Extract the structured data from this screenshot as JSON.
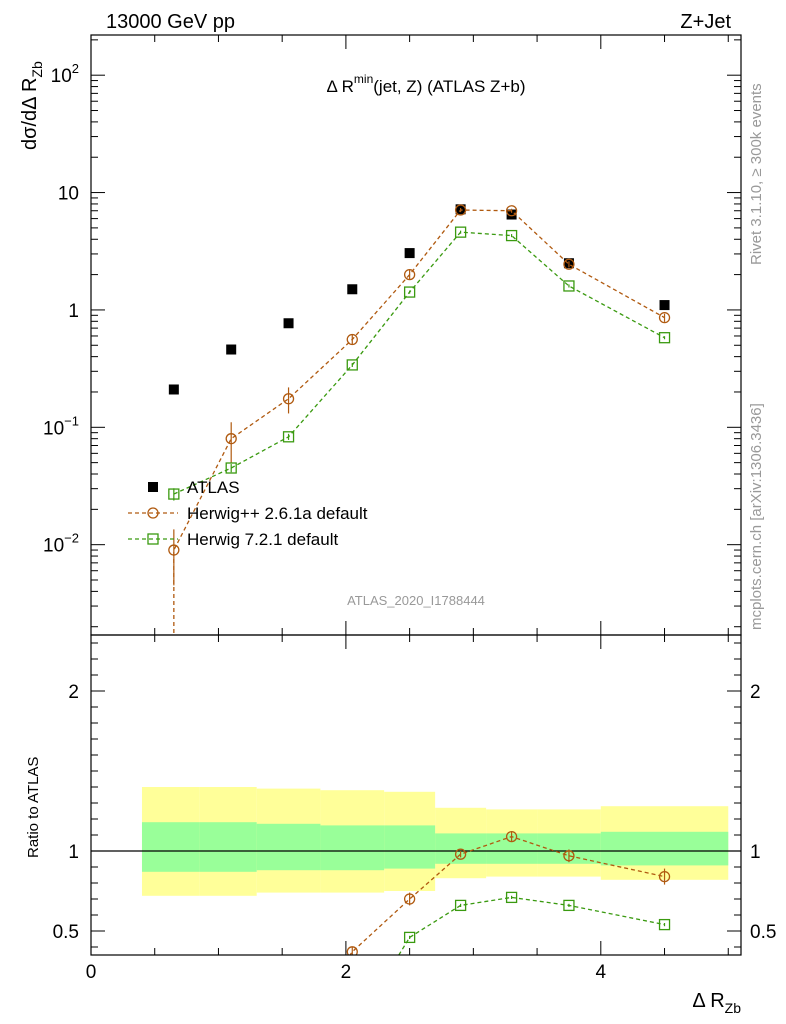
{
  "header": {
    "left": "13000 GeV pp",
    "right": "Z+Jet"
  },
  "side": {
    "rivet": "Rivet 3.1.10, ≥ 300k events",
    "mcplots": "mcplots.cern.ch [arXiv:1306.3436]"
  },
  "colors": {
    "data": "#000000",
    "herwigpp": "#b05a10",
    "herwig7": "#3a9a10",
    "band_outer": "#ffff99",
    "band_inner": "#99ff99",
    "watermark": "#999999"
  },
  "chart_data": [
    {
      "type": "scatter",
      "panel": "main",
      "title_main": "Δ R",
      "title_sup": "min",
      "title_rest": "(jet, Z) (ATLAS Z+b)",
      "ylabel": "dσ/dΔ R",
      "ylabel_sub": "Zb",
      "yscale": "log",
      "ylim": [
        0.0017,
        220
      ],
      "xlim": [
        0,
        5.1
      ],
      "analysis_id": "ATLAS_2020_I1788444",
      "ytick_labels": [
        {
          "value": 0.01,
          "base": "10",
          "exp": "−2"
        },
        {
          "value": 0.1,
          "base": "10",
          "exp": "−1"
        },
        {
          "value": 1,
          "base": "1",
          "exp": ""
        },
        {
          "value": 10,
          "base": "10",
          "exp": ""
        },
        {
          "value": 100,
          "base": "10",
          "exp": "2"
        }
      ],
      "legend": {
        "placement": "bottom-left",
        "entries": [
          "ATLAS",
          "Herwig++ 2.6.1a default",
          "Herwig 7.2.1 default"
        ]
      },
      "series": [
        {
          "name": "ATLAS",
          "marker": "filled-square",
          "x": [
            0.65,
            1.1,
            1.55,
            2.05,
            2.5,
            2.9,
            3.3,
            3.75,
            4.5
          ],
          "y": [
            0.21,
            0.46,
            0.77,
            1.5,
            3.05,
            7.2,
            6.5,
            2.5,
            1.1
          ]
        },
        {
          "name": "Herwig++ 2.6.1a default",
          "marker": "open-circle",
          "x": [
            0.65,
            1.1,
            1.55,
            2.05,
            2.5,
            2.9,
            3.3,
            3.75,
            4.5
          ],
          "y": [
            0.009,
            0.08,
            0.175,
            0.56,
            2.0,
            7.1,
            7.0,
            2.45,
            0.86
          ],
          "err": [
            0.5,
            0.38,
            0.25,
            0.1,
            0.1,
            0.04,
            0.04,
            0.06,
            0.08
          ]
        },
        {
          "name": "Herwig 7.2.1 default",
          "marker": "open-square",
          "x": [
            0.65,
            1.1,
            1.55,
            2.05,
            2.5,
            2.9,
            3.3,
            3.75,
            4.5
          ],
          "y": [
            0.027,
            0.045,
            0.083,
            0.34,
            1.42,
            4.6,
            4.3,
            1.6,
            0.58
          ],
          "err": [
            0.12,
            0.08,
            0.06,
            0.04,
            0.03,
            0.03,
            0.03,
            0.03,
            0.03
          ]
        }
      ]
    },
    {
      "type": "line",
      "panel": "ratio",
      "ylabel": "Ratio to ATLAS",
      "xlabel": "Δ R",
      "xlabel_sub": "Zb",
      "ylim": [
        0.35,
        2.35
      ],
      "xlim": [
        0,
        5.1
      ],
      "yticks": [
        0.5,
        1,
        2
      ],
      "ytick_labels": [
        "0.5",
        "1",
        "2"
      ],
      "xticks": [
        0,
        2,
        4
      ],
      "xtick_labels": [
        "0",
        "2",
        "4"
      ],
      "bands": [
        {
          "x0": 0.4,
          "x1": 0.85,
          "outer": [
            0.72,
            1.4
          ],
          "inner": [
            0.87,
            1.18
          ]
        },
        {
          "x0": 0.85,
          "x1": 1.3,
          "outer": [
            0.72,
            1.4
          ],
          "inner": [
            0.87,
            1.18
          ]
        },
        {
          "x0": 1.3,
          "x1": 1.8,
          "outer": [
            0.74,
            1.39
          ],
          "inner": [
            0.88,
            1.17
          ]
        },
        {
          "x0": 1.8,
          "x1": 2.3,
          "outer": [
            0.74,
            1.38
          ],
          "inner": [
            0.88,
            1.16
          ]
        },
        {
          "x0": 2.3,
          "x1": 2.7,
          "outer": [
            0.75,
            1.37
          ],
          "inner": [
            0.89,
            1.16
          ]
        },
        {
          "x0": 2.7,
          "x1": 3.1,
          "outer": [
            0.83,
            1.27
          ],
          "inner": [
            0.92,
            1.11
          ]
        },
        {
          "x0": 3.1,
          "x1": 3.5,
          "outer": [
            0.84,
            1.26
          ],
          "inner": [
            0.92,
            1.11
          ]
        },
        {
          "x0": 3.5,
          "x1": 4.0,
          "outer": [
            0.84,
            1.26
          ],
          "inner": [
            0.92,
            1.11
          ]
        },
        {
          "x0": 4.0,
          "x1": 5.0,
          "outer": [
            0.82,
            1.28
          ],
          "inner": [
            0.91,
            1.12
          ]
        }
      ],
      "series": [
        {
          "name": "Herwig++ 2.6.1a default",
          "marker": "open-circle",
          "x": [
            2.05,
            2.5,
            2.9,
            3.3,
            3.75,
            4.5
          ],
          "y": [
            0.37,
            0.7,
            0.98,
            1.09,
            0.97,
            0.84
          ],
          "err": [
            0.03,
            0.04,
            0.02,
            0.03,
            0.04,
            0.05
          ],
          "line_from": {
            "x": 1.9,
            "y": 0.2
          }
        },
        {
          "name": "Herwig 7.2.1 default",
          "marker": "open-square",
          "x": [
            2.5,
            2.9,
            3.3,
            3.75,
            4.5
          ],
          "y": [
            0.46,
            0.66,
            0.71,
            0.66,
            0.54
          ],
          "err": [
            0.01,
            0.01,
            0.01,
            0.01,
            0.01
          ],
          "line_from": {
            "x": 2.3,
            "y": 0.2
          }
        }
      ]
    }
  ]
}
